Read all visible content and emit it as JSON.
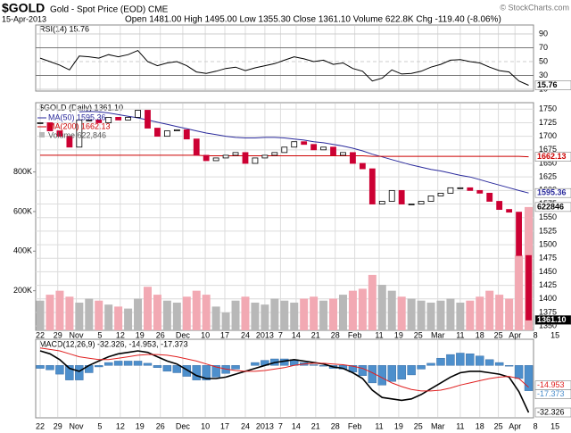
{
  "header": {
    "symbol": "$GOLD",
    "name": "Gold - Spot Price (EOD) CME",
    "date": "15-Apr-2013",
    "quote": "Open 1481.00 High 1495.00 Low 1355.30 Close 1361.10 Volume 622.8K Chg -119.40 (-8.06%)",
    "copyright": "© StockCharts.com"
  },
  "chart_data": [
    {
      "type": "rsi",
      "title": "RSI(14) 15.76",
      "color": "#000000",
      "values": [
        55,
        50,
        45,
        38,
        58,
        57,
        55,
        60,
        57,
        60,
        66,
        50,
        44,
        48,
        50,
        44,
        35,
        33,
        36,
        40,
        42,
        37,
        41,
        44,
        47,
        52,
        57,
        54,
        50,
        52,
        46,
        48,
        40,
        36,
        22,
        26,
        38,
        32,
        33,
        36,
        42,
        46,
        52,
        53,
        50,
        48,
        42,
        37,
        35,
        22,
        15.76
      ],
      "xlim": [
        -0.46,
        50.5
      ],
      "ylim": [
        7.4,
        102.9
      ],
      "yticks": [
        90,
        70,
        50,
        30,
        10
      ],
      "tag": 15.76
    },
    {
      "type": "candlestick",
      "title": "$GOLD (Daily) 1361.10",
      "up_color": "#000000",
      "down_color": "#cc0033",
      "close": [
        1725,
        1710,
        1700,
        1680,
        1730,
        1730,
        1725,
        1735,
        1730,
        1735,
        1748,
        1715,
        1700,
        1710,
        1712,
        1695,
        1665,
        1655,
        1660,
        1665,
        1670,
        1650,
        1660,
        1665,
        1670,
        1680,
        1690,
        1685,
        1675,
        1680,
        1665,
        1670,
        1650,
        1640,
        1575,
        1580,
        1600,
        1575,
        1575,
        1580,
        1590,
        1595,
        1605,
        1605,
        1600,
        1595,
        1580,
        1565,
        1560,
        1480,
        1361.1
      ],
      "series": [
        {
          "name": "MA(50) 1595.36",
          "color": "#2a2a9c",
          "values": [
            null,
            null,
            null,
            null,
            1745,
            1746,
            1745,
            1743,
            1740,
            1737,
            1734,
            1730,
            1726,
            1722,
            1718,
            1714,
            1710,
            1706,
            1703,
            1700,
            1698,
            1697,
            1697,
            1698,
            1698,
            1697,
            1695,
            1693,
            1690,
            1688,
            1685,
            1682,
            1678,
            1673,
            1667,
            1662,
            1657,
            1652,
            1647,
            1643,
            1639,
            1636,
            1632,
            1628,
            1625,
            1620,
            1615,
            1610,
            1605,
            1600,
            1595.36
          ]
        },
        {
          "name": "MA(200) 1662.13",
          "color": "#cc0000",
          "values": [
            1665,
            1665,
            1665,
            1665,
            1665,
            1665,
            1665,
            1665,
            1665,
            1665,
            1665,
            1665,
            1665,
            1665,
            1665,
            1665,
            1665,
            1664,
            1664,
            1664,
            1664,
            1664,
            1664,
            1664,
            1664,
            1664,
            1664,
            1664,
            1664,
            1664,
            1664,
            1664,
            1664,
            1664,
            1663,
            1663,
            1663,
            1663,
            1663,
            1663,
            1663,
            1663,
            1663,
            1663,
            1663,
            1663,
            1663,
            1663,
            1663,
            1663,
            1662.13
          ]
        }
      ],
      "volume": {
        "name": "Volume 622,846",
        "up_color": "#b8b8b8",
        "down_color": "#f2a9b3",
        "values": [
          150000,
          180000,
          200000,
          170000,
          140000,
          160000,
          150000,
          130000,
          120000,
          110000,
          160000,
          220000,
          180000,
          150000,
          140000,
          170000,
          200000,
          180000,
          120000,
          90000,
          150000,
          170000,
          140000,
          130000,
          160000,
          150000,
          140000,
          160000,
          170000,
          150000,
          160000,
          180000,
          200000,
          210000,
          280000,
          230000,
          200000,
          170000,
          160000,
          150000,
          140000,
          150000,
          160000,
          140000,
          150000,
          170000,
          200000,
          180000,
          160000,
          380000,
          622846
        ],
        "ylim": [
          0,
          1150000
        ],
        "yticks": [
          {
            "value": 200000,
            "label": "200K"
          },
          {
            "value": 400000,
            "label": "400K"
          },
          {
            "value": 600000,
            "label": "600K"
          },
          {
            "value": 800000,
            "label": "800K"
          }
        ],
        "tag": 622846
      },
      "xlim": [
        -0.46,
        50.5
      ],
      "ylim": [
        1342,
        1762
      ],
      "yticks": [
        1750,
        1725,
        1700,
        1675,
        1650,
        1625,
        1600,
        1575,
        1550,
        1525,
        1500,
        1475,
        1450,
        1425,
        1400,
        1375,
        1350
      ],
      "xticks": [
        {
          "value": 0,
          "label": "22"
        },
        {
          "value": 1.8,
          "label": "29"
        },
        {
          "value": 3.7,
          "label": "Nov"
        },
        {
          "value": 6.1,
          "label": "5"
        },
        {
          "value": 8.2,
          "label": "12"
        },
        {
          "value": 10.2,
          "label": "19"
        },
        {
          "value": 12.3,
          "label": "26"
        },
        {
          "value": 14.6,
          "label": "Dec"
        },
        {
          "value": 16.9,
          "label": "10"
        },
        {
          "value": 18.9,
          "label": "17"
        },
        {
          "value": 21,
          "label": "24"
        },
        {
          "value": 23,
          "label": "2013"
        },
        {
          "value": 24.6,
          "label": "7"
        },
        {
          "value": 26.2,
          "label": "14"
        },
        {
          "value": 28.2,
          "label": "21"
        },
        {
          "value": 30.2,
          "label": "28"
        },
        {
          "value": 32.2,
          "label": "Feb"
        },
        {
          "value": 34.7,
          "label": "11"
        },
        {
          "value": 36.7,
          "label": "19"
        },
        {
          "value": 38.7,
          "label": "25"
        },
        {
          "value": 40.7,
          "label": "Mar"
        },
        {
          "value": 43,
          "label": "11"
        },
        {
          "value": 45,
          "label": "18"
        },
        {
          "value": 46.9,
          "label": "25"
        },
        {
          "value": 48.6,
          "label": "Apr"
        },
        {
          "value": 50.7,
          "label": "8"
        },
        {
          "value": 52.7,
          "label": "15"
        }
      ],
      "tags": [
        1662.13,
        1595.36,
        {
          "value": 1361.1,
          "label": "1361.10"
        }
      ]
    },
    {
      "type": "macd",
      "title": "MACD(12,26,9) -32.326, -14.953, -17.373",
      "series": [
        {
          "color": "#000000",
          "values": [
            10,
            8,
            4,
            -2,
            -4,
            0,
            3,
            6,
            8,
            9,
            10,
            9,
            6,
            3,
            1,
            -3,
            -7,
            -9,
            -9,
            -8,
            -6,
            -4,
            -2,
            0,
            2,
            3,
            4,
            3,
            2,
            1,
            -1,
            -2,
            -5,
            -9,
            -17,
            -22,
            -23,
            -24,
            -23,
            -20,
            -16,
            -12,
            -8,
            -5,
            -4,
            -4,
            -5,
            -6,
            -8,
            -18,
            -32.326
          ]
        },
        {
          "color": "#e02020",
          "values": [
            12,
            11,
            10,
            8,
            6,
            5,
            4,
            4,
            5,
            6,
            7,
            7.5,
            7.5,
            7,
            6,
            4.5,
            3,
            1,
            -1,
            -2.5,
            -3.5,
            -4,
            -4,
            -3.5,
            -2.5,
            -1.5,
            0,
            1,
            1.5,
            1.5,
            1,
            0.5,
            -0.5,
            -2,
            -5,
            -8.5,
            -12,
            -14.5,
            -16.5,
            -17.5,
            -17.5,
            -17,
            -15.5,
            -13.5,
            -12,
            -10.5,
            -9,
            -8,
            -7.5,
            -9,
            -14.953
          ]
        }
      ],
      "histogram": {
        "color": "#4d8fcc",
        "values": [
          -2,
          -3,
          -6,
          -10,
          -10,
          -5,
          -1,
          2,
          3,
          3,
          3,
          1.5,
          -1.5,
          -4,
          -5,
          -7.5,
          -10,
          -10,
          -8,
          -5.5,
          -2.5,
          0,
          2,
          3.5,
          4.5,
          4.5,
          4,
          2,
          0.5,
          -0.5,
          -2,
          -2.5,
          -4.5,
          -7,
          -12,
          -13.5,
          -11,
          -9.5,
          -6.5,
          -2.5,
          1.5,
          5,
          7.5,
          8.5,
          8,
          6.5,
          4,
          2,
          -0.5,
          -9,
          -17.373
        ]
      },
      "xlim": [
        -0.46,
        50.5
      ],
      "ylim": [
        -36,
        18
      ],
      "xticks": [
        {
          "value": 0,
          "label": "22"
        },
        {
          "value": 1.8,
          "label": "29"
        },
        {
          "value": 3.7,
          "label": "Nov"
        },
        {
          "value": 6.1,
          "label": "5"
        },
        {
          "value": 8.2,
          "label": "12"
        },
        {
          "value": 10.2,
          "label": "19"
        },
        {
          "value": 12.3,
          "label": "26"
        },
        {
          "value": 14.6,
          "label": "Dec"
        },
        {
          "value": 16.9,
          "label": "10"
        },
        {
          "value": 18.9,
          "label": "17"
        },
        {
          "value": 21,
          "label": "24"
        },
        {
          "value": 23,
          "label": "2013"
        },
        {
          "value": 24.6,
          "label": "7"
        },
        {
          "value": 26.2,
          "label": "14"
        },
        {
          "value": 28.2,
          "label": "21"
        },
        {
          "value": 30.2,
          "label": "28"
        },
        {
          "value": 32.2,
          "label": "Feb"
        },
        {
          "value": 34.7,
          "label": "11"
        },
        {
          "value": 36.7,
          "label": "19"
        },
        {
          "value": 38.7,
          "label": "25"
        },
        {
          "value": 40.7,
          "label": "Mar"
        },
        {
          "value": 43,
          "label": "11"
        },
        {
          "value": 45,
          "label": "18"
        },
        {
          "value": 46.9,
          "label": "25"
        },
        {
          "value": 48.6,
          "label": "Apr"
        },
        {
          "value": 50.7,
          "label": "8"
        },
        {
          "value": 52.7,
          "label": "15"
        }
      ],
      "tags": [
        -14.953,
        -17.373,
        -32.326
      ]
    }
  ]
}
